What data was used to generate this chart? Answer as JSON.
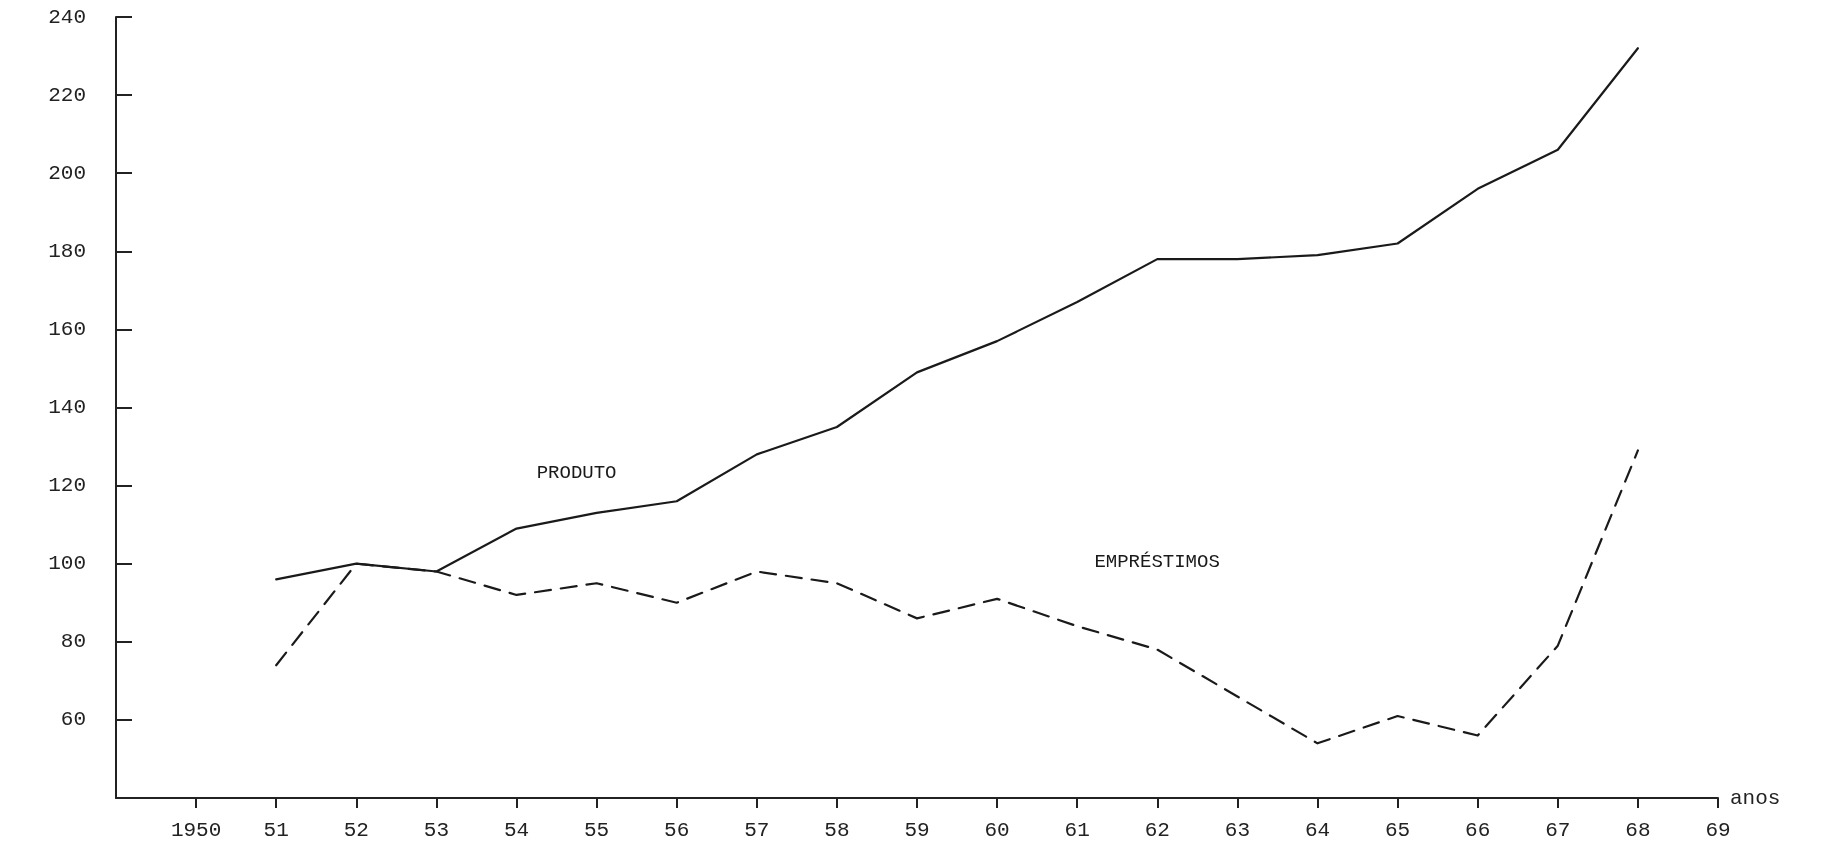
{
  "chart_data": {
    "type": "line",
    "xlabel": "anos",
    "x": [
      1951,
      1952,
      1953,
      1954,
      1955,
      1956,
      1957,
      1958,
      1959,
      1960,
      1961,
      1962,
      1963,
      1964,
      1965,
      1966,
      1967,
      1968
    ],
    "series": [
      {
        "name": "PRODUTO",
        "color": "#1a1a1a",
        "line_style": "solid",
        "values": [
          96,
          100,
          98,
          109,
          113,
          116,
          128,
          135,
          149,
          157,
          167,
          178,
          178,
          179,
          182,
          196,
          206,
          232
        ]
      },
      {
        "name": "EMPRÉSTIMOS",
        "color": "#1a1a1a",
        "line_style": "dashed",
        "values": [
          74,
          100,
          98,
          92,
          95,
          90,
          98,
          95,
          86,
          91,
          84,
          78,
          66,
          54,
          61,
          56,
          79,
          129
        ]
      }
    ],
    "xlim": [
      1949,
      1969
    ],
    "xticks": [
      1950,
      {
        "value": 1951,
        "label": "51"
      },
      {
        "value": 1952,
        "label": "52"
      },
      {
        "value": 1953,
        "label": "53"
      },
      {
        "value": 1954,
        "label": "54"
      },
      {
        "value": 1955,
        "label": "55"
      },
      {
        "value": 1956,
        "label": "56"
      },
      {
        "value": 1957,
        "label": "57"
      },
      {
        "value": 1958,
        "label": "58"
      },
      {
        "value": 1959,
        "label": "59"
      },
      {
        "value": 1960,
        "label": "60"
      },
      {
        "value": 1961,
        "label": "61"
      },
      {
        "value": 1962,
        "label": "62"
      },
      {
        "value": 1963,
        "label": "63"
      },
      {
        "value": 1964,
        "label": "64"
      },
      {
        "value": 1965,
        "label": "65"
      },
      {
        "value": 1966,
        "label": "66"
      },
      {
        "value": 1967,
        "label": "67"
      },
      {
        "value": 1968,
        "label": "68"
      },
      {
        "value": 1969,
        "label": "69"
      }
    ],
    "ylim": [
      40,
      240
    ],
    "yticks": [
      60,
      80,
      100,
      120,
      140,
      160,
      180,
      200,
      220,
      240
    ],
    "grid": false,
    "legend": false,
    "marker": "none"
  }
}
